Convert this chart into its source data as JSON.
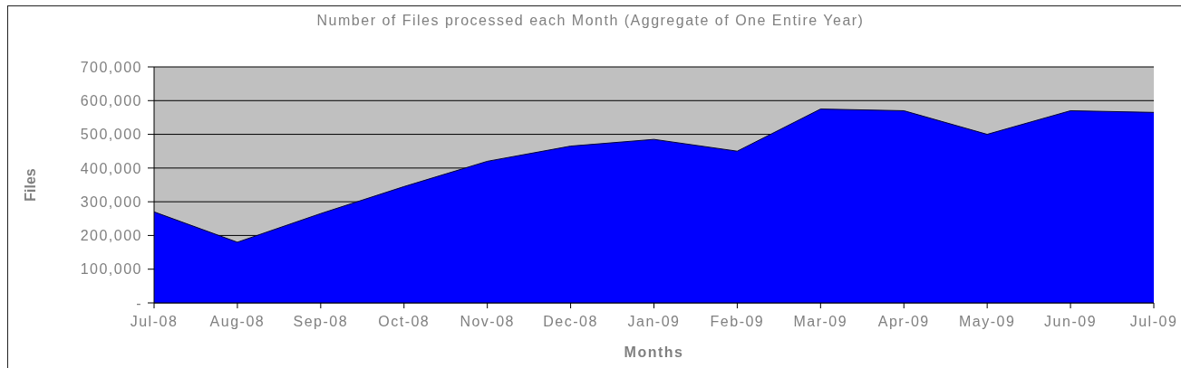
{
  "chart_data": {
    "type": "area",
    "title": "Number of Files processed each Month (Aggregate of One Entire Year)",
    "xlabel": "Months",
    "ylabel": "Files",
    "categories": [
      "Jul-08",
      "Aug-08",
      "Sep-08",
      "Oct-08",
      "Nov-08",
      "Dec-08",
      "Jan-09",
      "Feb-09",
      "Mar-09",
      "Apr-09",
      "May-09",
      "Jun-09",
      "Jul-09"
    ],
    "values": [
      270000,
      180000,
      265000,
      345000,
      420000,
      465000,
      485000,
      450000,
      575000,
      570000,
      500000,
      570000,
      565000
    ],
    "color": "#0000ff",
    "ylim": [
      0,
      700000
    ],
    "yticks": [
      {
        "value": 0,
        "label": "-"
      },
      {
        "value": 100000,
        "label": "100,000"
      },
      {
        "value": 200000,
        "label": "200,000"
      },
      {
        "value": 300000,
        "label": "300,000"
      },
      {
        "value": 400000,
        "label": "400,000"
      },
      {
        "value": 500000,
        "label": "500,000"
      },
      {
        "value": 600000,
        "label": "600,000"
      },
      {
        "value": 700000,
        "label": "700,000"
      }
    ],
    "grid": "y"
  }
}
